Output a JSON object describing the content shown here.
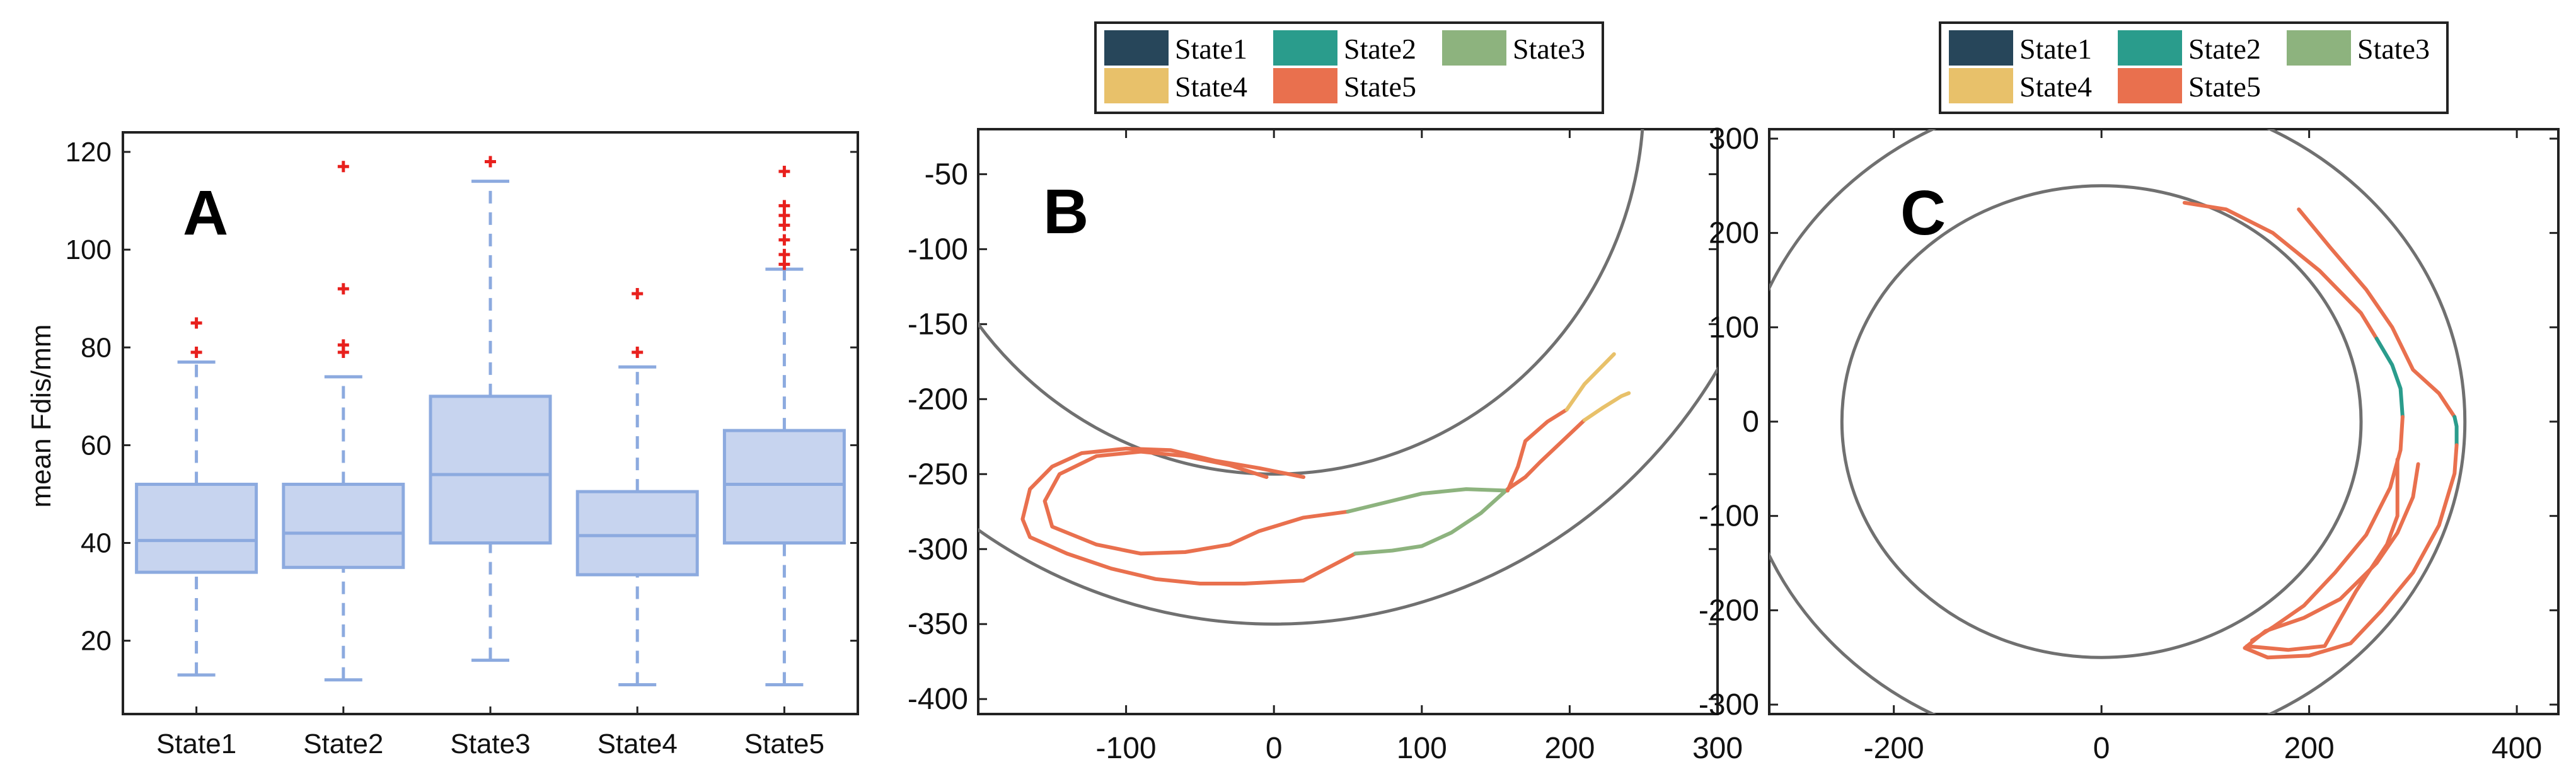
{
  "colors": {
    "State1": "#27465a",
    "State2": "#2a9c8c",
    "State3": "#8db37e",
    "State4": "#e8c16a",
    "State5": "#e9704e",
    "box_fill": "#c7d4ef",
    "box_edge": "#8caadf",
    "outlier": "#e8201d",
    "circle": "#707070"
  },
  "chart_data": [
    {
      "panel": "A",
      "type": "box",
      "ylabel": "mean Fdis/mm",
      "ylim": [
        5,
        124
      ],
      "yticks": [
        20,
        40,
        60,
        80,
        100,
        120
      ],
      "categories": [
        "State1",
        "State2",
        "State3",
        "State4",
        "State5"
      ],
      "boxes": [
        {
          "whisker_low": 13,
          "q1": 34,
          "median": 40.5,
          "q3": 52,
          "whisker_high": 77,
          "outliers": [
            79,
            85
          ]
        },
        {
          "whisker_low": 12,
          "q1": 35,
          "median": 42,
          "q3": 52,
          "whisker_high": 74,
          "outliers": [
            79,
            80.5,
            92,
            117
          ]
        },
        {
          "whisker_low": 16,
          "q1": 40,
          "median": 54,
          "q3": 70,
          "whisker_high": 114,
          "outliers": [
            118
          ]
        },
        {
          "whisker_low": 11,
          "q1": 33.5,
          "median": 41.5,
          "q3": 50.5,
          "whisker_high": 76,
          "outliers": [
            79,
            91
          ]
        },
        {
          "whisker_low": 11,
          "q1": 40,
          "median": 52,
          "q3": 63,
          "whisker_high": 96,
          "outliers": [
            97,
            99,
            102,
            105,
            107,
            109,
            116
          ]
        }
      ]
    },
    {
      "panel": "B",
      "type": "line",
      "xlim": [
        -200,
        300
      ],
      "ylim": [
        -410,
        -20
      ],
      "xticks": [
        -100,
        0,
        100,
        200,
        300
      ],
      "yticks": [
        -400,
        -350,
        -300,
        -250,
        -200,
        -150,
        -100,
        -50
      ],
      "legend": [
        "State1",
        "State2",
        "State3",
        "State4",
        "State5"
      ],
      "circles": [
        {
          "cx": 0,
          "cy": 0,
          "r": 250
        },
        {
          "cx": 0,
          "cy": 0,
          "r": 350
        }
      ],
      "series": [
        {
          "state": "State5",
          "points": [
            [
              20,
              -252
            ],
            [
              -10,
              -246
            ],
            [
              -40,
              -241
            ],
            [
              -70,
              -234
            ],
            [
              -100,
              -233
            ],
            [
              -130,
              -236
            ],
            [
              -150,
              -245
            ],
            [
              -165,
              -260
            ],
            [
              -170,
              -280
            ],
            [
              -165,
              -292
            ],
            [
              -140,
              -303
            ],
            [
              -110,
              -313
            ],
            [
              -80,
              -320
            ],
            [
              -50,
              -323
            ],
            [
              -20,
              -323
            ],
            [
              20,
              -321
            ],
            [
              55,
              -303
            ]
          ]
        },
        {
          "state": "State3",
          "points": [
            [
              55,
              -303
            ],
            [
              80,
              -301
            ],
            [
              100,
              -298
            ],
            [
              120,
              -289
            ],
            [
              140,
              -276
            ],
            [
              158,
              -260
            ]
          ]
        },
        {
          "state": "State5",
          "points": [
            [
              158,
              -260
            ],
            [
              170,
              -252
            ],
            [
              180,
              -242
            ],
            [
              195,
              -228
            ],
            [
              210,
              -214
            ]
          ]
        },
        {
          "state": "State4",
          "points": [
            [
              210,
              -214
            ],
            [
              222,
              -206
            ],
            [
              235,
              -198
            ],
            [
              240,
              -196
            ]
          ]
        },
        {
          "state": "State5",
          "points": [
            [
              -5,
              -252
            ],
            [
              -30,
              -244
            ],
            [
              -60,
              -238
            ],
            [
              -90,
              -235
            ],
            [
              -120,
              -238
            ],
            [
              -145,
              -250
            ],
            [
              -155,
              -268
            ],
            [
              -150,
              -285
            ],
            [
              -120,
              -297
            ],
            [
              -90,
              -303
            ],
            [
              -60,
              -302
            ],
            [
              -30,
              -297
            ],
            [
              -10,
              -288
            ],
            [
              20,
              -279
            ],
            [
              50,
              -275
            ]
          ]
        },
        {
          "state": "State3",
          "points": [
            [
              50,
              -275
            ],
            [
              75,
              -269
            ],
            [
              100,
              -263
            ],
            [
              130,
              -260
            ],
            [
              158,
              -261
            ]
          ]
        },
        {
          "state": "State5",
          "points": [
            [
              158,
              -261
            ],
            [
              165,
              -245
            ],
            [
              170,
              -228
            ],
            [
              185,
              -215
            ],
            [
              198,
              -207
            ]
          ]
        },
        {
          "state": "State4",
          "points": [
            [
              198,
              -207
            ],
            [
              210,
              -190
            ],
            [
              222,
              -178
            ],
            [
              230,
              -170
            ]
          ]
        }
      ]
    },
    {
      "panel": "C",
      "type": "line",
      "xlim": [
        -320,
        440
      ],
      "ylim": [
        -310,
        310
      ],
      "xticks": [
        -200,
        0,
        200,
        400
      ],
      "yticks": [
        -300,
        -200,
        -100,
        0,
        100,
        200,
        300
      ],
      "legend": [
        "State1",
        "State2",
        "State3",
        "State4",
        "State5"
      ],
      "circles": [
        {
          "cx": 0,
          "cy": 0,
          "r": 250
        },
        {
          "cx": 0,
          "cy": 0,
          "r": 350
        }
      ],
      "series": [
        {
          "state": "State5",
          "points": [
            [
              190,
              225
            ],
            [
              220,
              185
            ],
            [
              255,
              140
            ],
            [
              280,
              100
            ],
            [
              300,
              55
            ],
            [
              325,
              30
            ],
            [
              340,
              5
            ]
          ]
        },
        {
          "state": "State2",
          "points": [
            [
              340,
              5
            ],
            [
              342,
              -5
            ],
            [
              342,
              -25
            ]
          ]
        },
        {
          "state": "State5",
          "points": [
            [
              342,
              -25
            ],
            [
              340,
              -55
            ],
            [
              325,
              -110
            ],
            [
              300,
              -160
            ],
            [
              270,
              -200
            ],
            [
              240,
              -235
            ],
            [
              200,
              -248
            ],
            [
              160,
              -250
            ],
            [
              138,
              -240
            ],
            [
              158,
              -222
            ],
            [
              195,
              -208
            ],
            [
              230,
              -188
            ],
            [
              265,
              -150
            ],
            [
              285,
              -118
            ],
            [
              300,
              -80
            ],
            [
              305,
              -45
            ]
          ]
        },
        {
          "state": "State5",
          "points": [
            [
              80,
              232
            ],
            [
              120,
              225
            ],
            [
              165,
              200
            ],
            [
              210,
              160
            ],
            [
              250,
              115
            ],
            [
              265,
              88
            ]
          ]
        },
        {
          "state": "State2",
          "points": [
            [
              265,
              88
            ],
            [
              280,
              60
            ],
            [
              288,
              35
            ],
            [
              290,
              5
            ]
          ]
        },
        {
          "state": "State5",
          "points": [
            [
              290,
              5
            ],
            [
              288,
              -30
            ],
            [
              278,
              -70
            ],
            [
              255,
              -120
            ],
            [
              225,
              -160
            ],
            [
              195,
              -195
            ],
            [
              165,
              -218
            ],
            [
              145,
              -232
            ]
          ]
        },
        {
          "state": "State5",
          "points": [
            [
              140,
              -238
            ],
            [
              180,
              -242
            ],
            [
              215,
              -238
            ],
            [
              245,
              -180
            ],
            [
              275,
              -130
            ],
            [
              285,
              -100
            ],
            [
              285,
              -40
            ]
          ]
        }
      ]
    }
  ]
}
